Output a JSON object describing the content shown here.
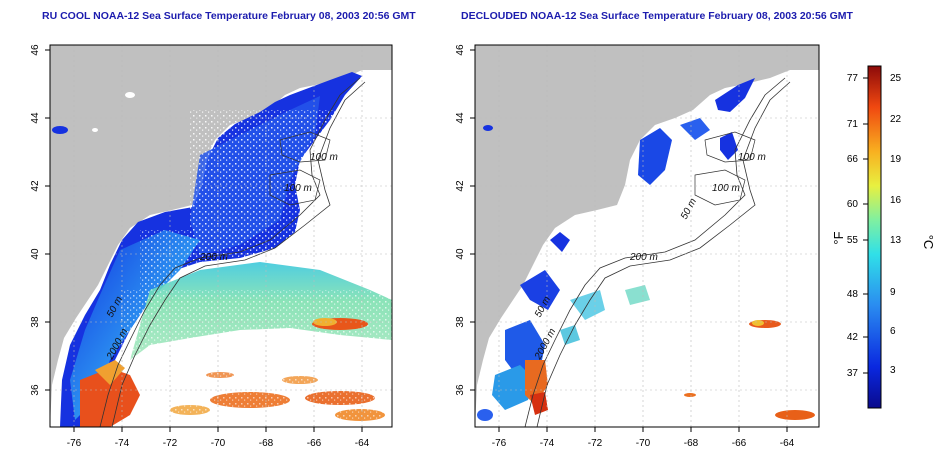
{
  "titles": {
    "left": "RU COOL NOAA-12 Sea Surface Temperature February 08, 2003 20:56 GMT",
    "right": "DECLOUDED NOAA-12 Sea Surface Temperature February 08, 2003 20:56 GMT"
  },
  "axes": {
    "lon_ticks": [
      "-76",
      "-74",
      "-72",
      "-70",
      "-68",
      "-66",
      "-64"
    ],
    "lat_ticks": [
      "36",
      "38",
      "40",
      "42",
      "44",
      "46"
    ]
  },
  "contours": {
    "left": [
      "100 m",
      "100 m",
      "200 m",
      "50 m",
      "2000 m"
    ],
    "right": [
      "100 m",
      "100 m",
      "50 m",
      "200 m",
      "50 m",
      "2000 m"
    ]
  },
  "colorbar": {
    "f_label": "°F",
    "c_label": "°C",
    "f_ticks": [
      "77",
      "71",
      "66",
      "60",
      "55",
      "48",
      "42",
      "37"
    ],
    "c_ticks": [
      "25",
      "22",
      "19",
      "16",
      "13",
      "9",
      "6",
      "3"
    ]
  },
  "colors": {
    "land": "#c0c0c0",
    "title": "#1c1cae",
    "cold": "#0a1fd4",
    "warm": "#d42a00"
  }
}
